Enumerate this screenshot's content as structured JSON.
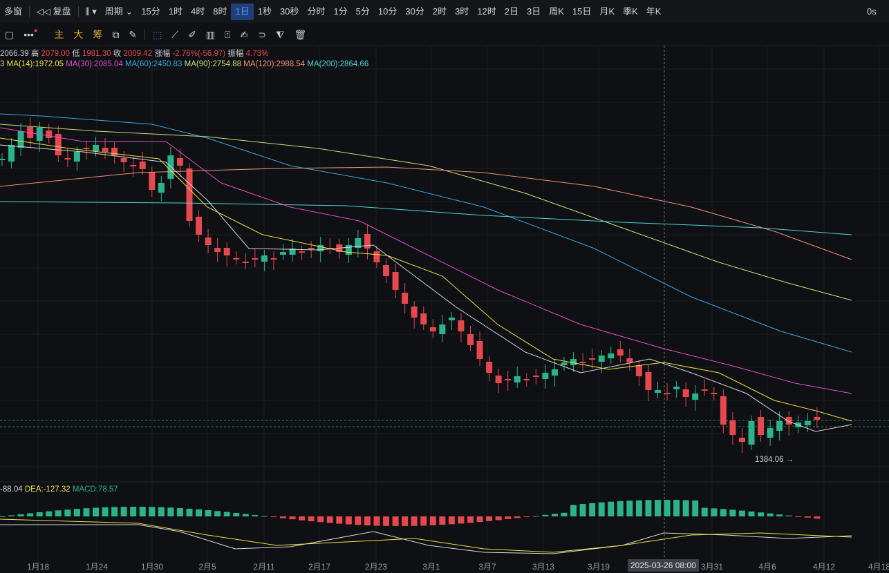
{
  "topbar": {
    "items": [
      "多窗",
      "复盘",
      "",
      "周期",
      "15分",
      "1时",
      "4时",
      "8时",
      "1日",
      "1秒",
      "30秒",
      "分时",
      "1分",
      "5分",
      "10分",
      "30分",
      "2时",
      "3时",
      "12时",
      "2日",
      "3日",
      "周K",
      "15日",
      "月K",
      "季K",
      "年K"
    ],
    "right": "0s"
  },
  "toolbar2": {
    "main": "主",
    "big": "大",
    "chip": "筹"
  },
  "info1": {
    "open": "2066.39",
    "high_label": "高",
    "high": "2079.00",
    "low_label": "低",
    "low": "1981.30",
    "close_label": "收",
    "close": "2009.42",
    "chg_label": "涨幅",
    "chg": "-2.76%(-56.97)",
    "amp_label": "振幅",
    "amp": "4.73%"
  },
  "ma": {
    "prefix": "3",
    "ma14": "MA(14):1972.05",
    "ma30": "MA(30):2085.04",
    "ma60": "MA(60):2450.83",
    "ma90": "MA(90):2754.88",
    "ma120": "MA(120):2988.54",
    "ma200": "MA(200):2864.66",
    "colors": {
      "ma14": "#f0e14a",
      "ma30": "#e34fc8",
      "ma60": "#3ba7e6",
      "ma90": "#c6e07a",
      "ma120": "#f2907a",
      "ma200": "#4fd6d6"
    }
  },
  "macd": {
    "dif": "-88.04",
    "dea": "DEA:-127.32",
    "macd": "MACD:78.57"
  },
  "low_marker": "1384.06 →",
  "crosshair_date": "2025-03-26 08:00",
  "xaxis": [
    "1月18",
    "1月24",
    "1月30",
    "2月5",
    "2月11",
    "2月17",
    "2月23",
    "3月1",
    "3月7",
    "3月13",
    "3月19",
    "3月31",
    "4月6",
    "4月12",
    "4月18"
  ],
  "colors": {
    "up": "#2bb48c",
    "down": "#e5484d",
    "bg": "#0f1013"
  }
}
